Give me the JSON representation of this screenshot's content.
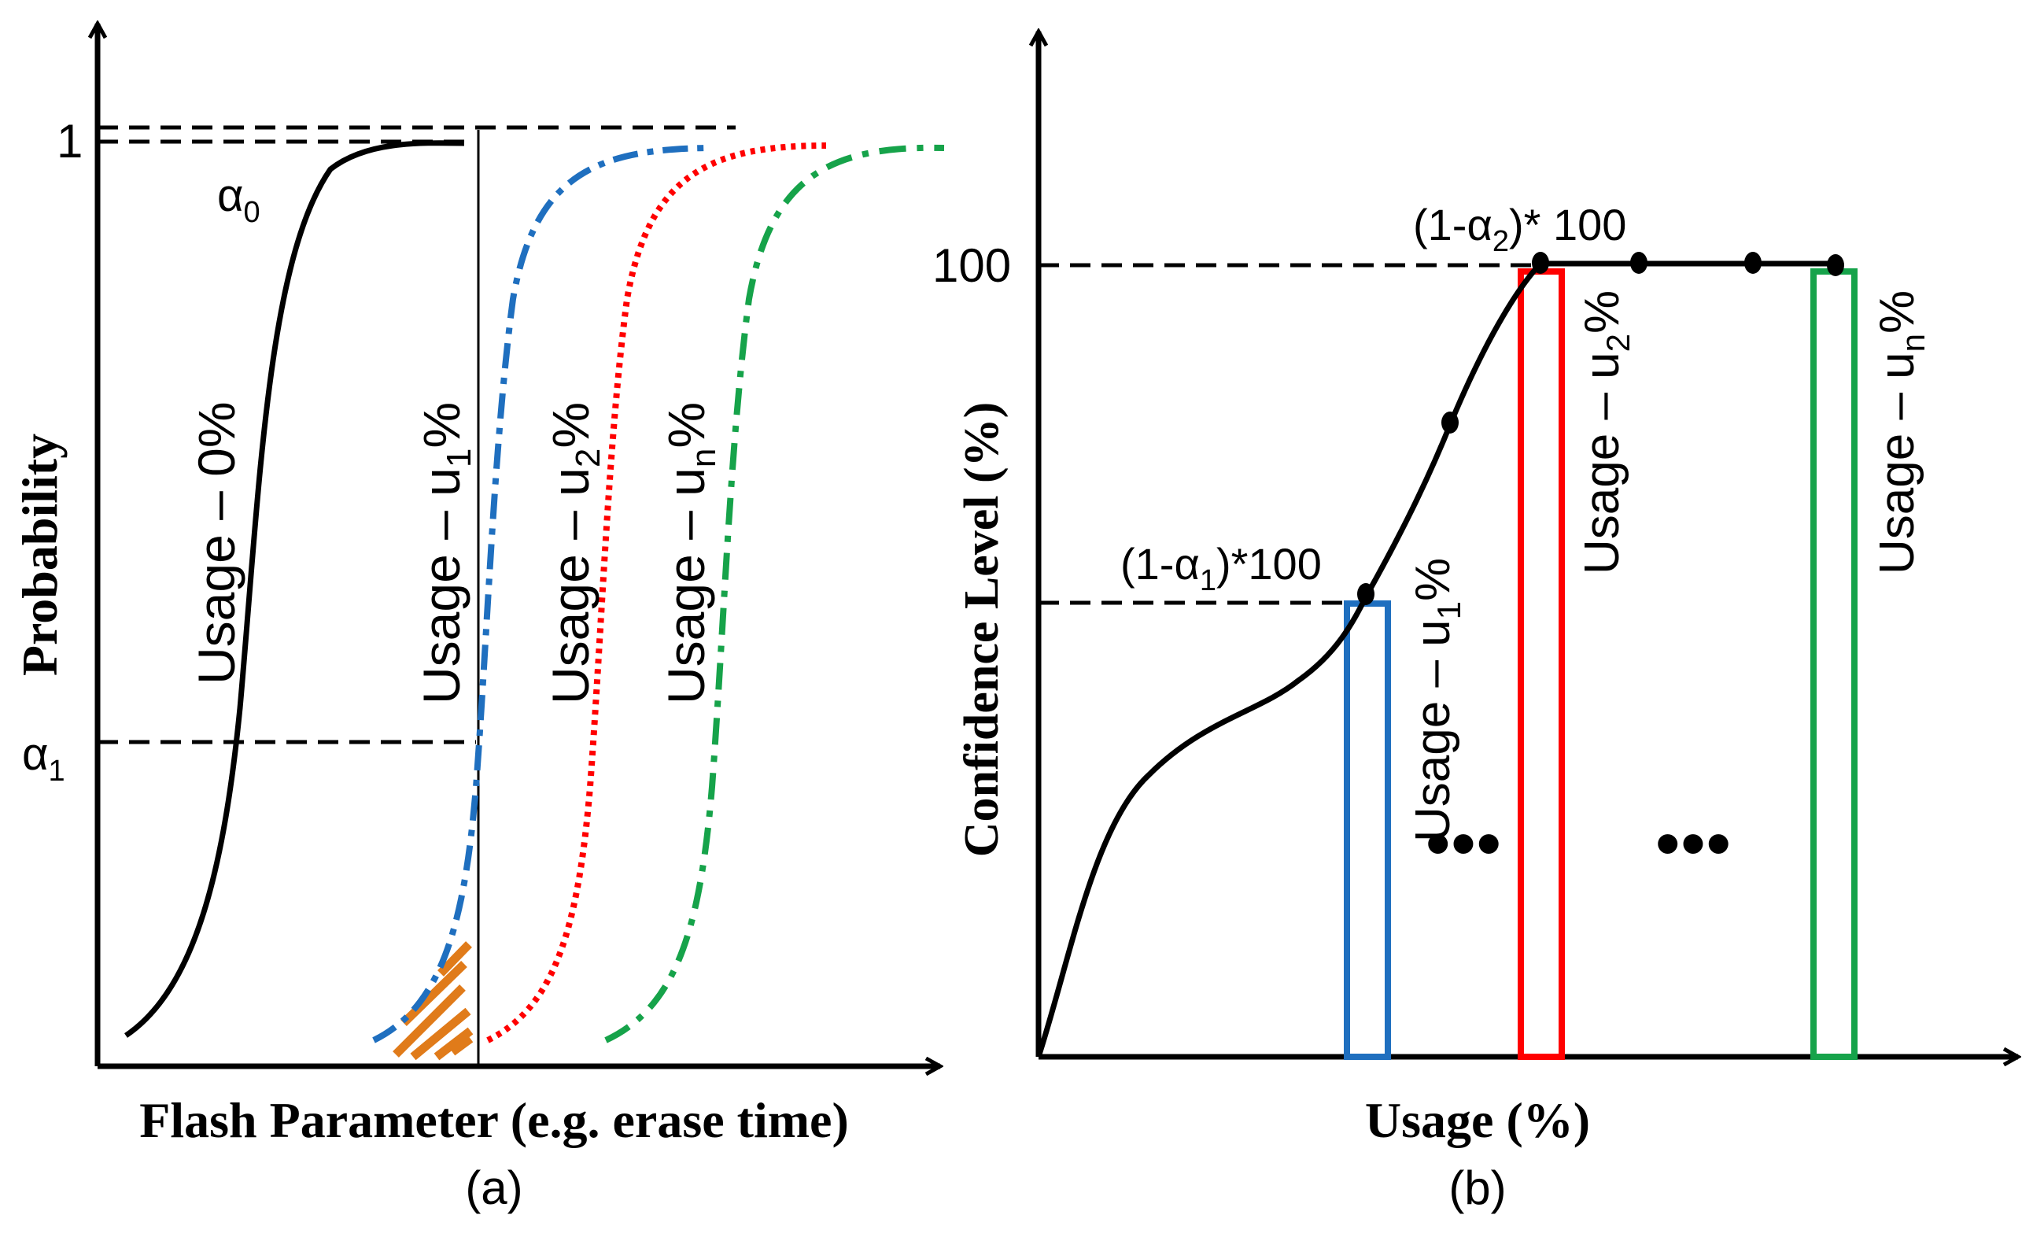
{
  "panel_a": {
    "caption": "(a)",
    "x_axis_label": "Flash Parameter (e.g. erase time)",
    "y_axis_label": "Probability",
    "y_tick_top": "1",
    "alpha0_base": "α",
    "alpha0_sub": "0",
    "alpha1_base": "α",
    "alpha1_sub": "1",
    "curve_labels": [
      {
        "pre": "Usage – 0%",
        "sub": "",
        "post": ""
      },
      {
        "pre": "Usage – u",
        "sub": "1",
        "post": "%"
      },
      {
        "pre": "Usage – u",
        "sub": "2",
        "post": "%"
      },
      {
        "pre": "Usage – u",
        "sub": "n",
        "post": "%"
      }
    ]
  },
  "panel_b": {
    "caption": "(b)",
    "x_axis_label": "Usage (%)",
    "y_axis_label": "Confidence Level (%)",
    "y_tick_100": "100",
    "level1": {
      "pre": "(1-α",
      "sub": "1",
      "post": ")*100"
    },
    "level2": {
      "pre": "(1-α",
      "sub": "2",
      "post": ")* 100"
    },
    "bar_labels": [
      {
        "pre": "Usage – u",
        "sub": "1",
        "post": "%"
      },
      {
        "pre": "Usage – u",
        "sub": "2",
        "post": "%"
      },
      {
        "pre": "Usage – u",
        "sub": "n",
        "post": "%"
      }
    ],
    "ellipsis": "•••"
  },
  "colors": {
    "axis": "#000000",
    "usage_0": "#000000",
    "usage_u1": "#1f6fbf",
    "usage_u2": "#ff0000",
    "usage_un": "#16a34a",
    "hatch": "#e07b1a"
  }
}
